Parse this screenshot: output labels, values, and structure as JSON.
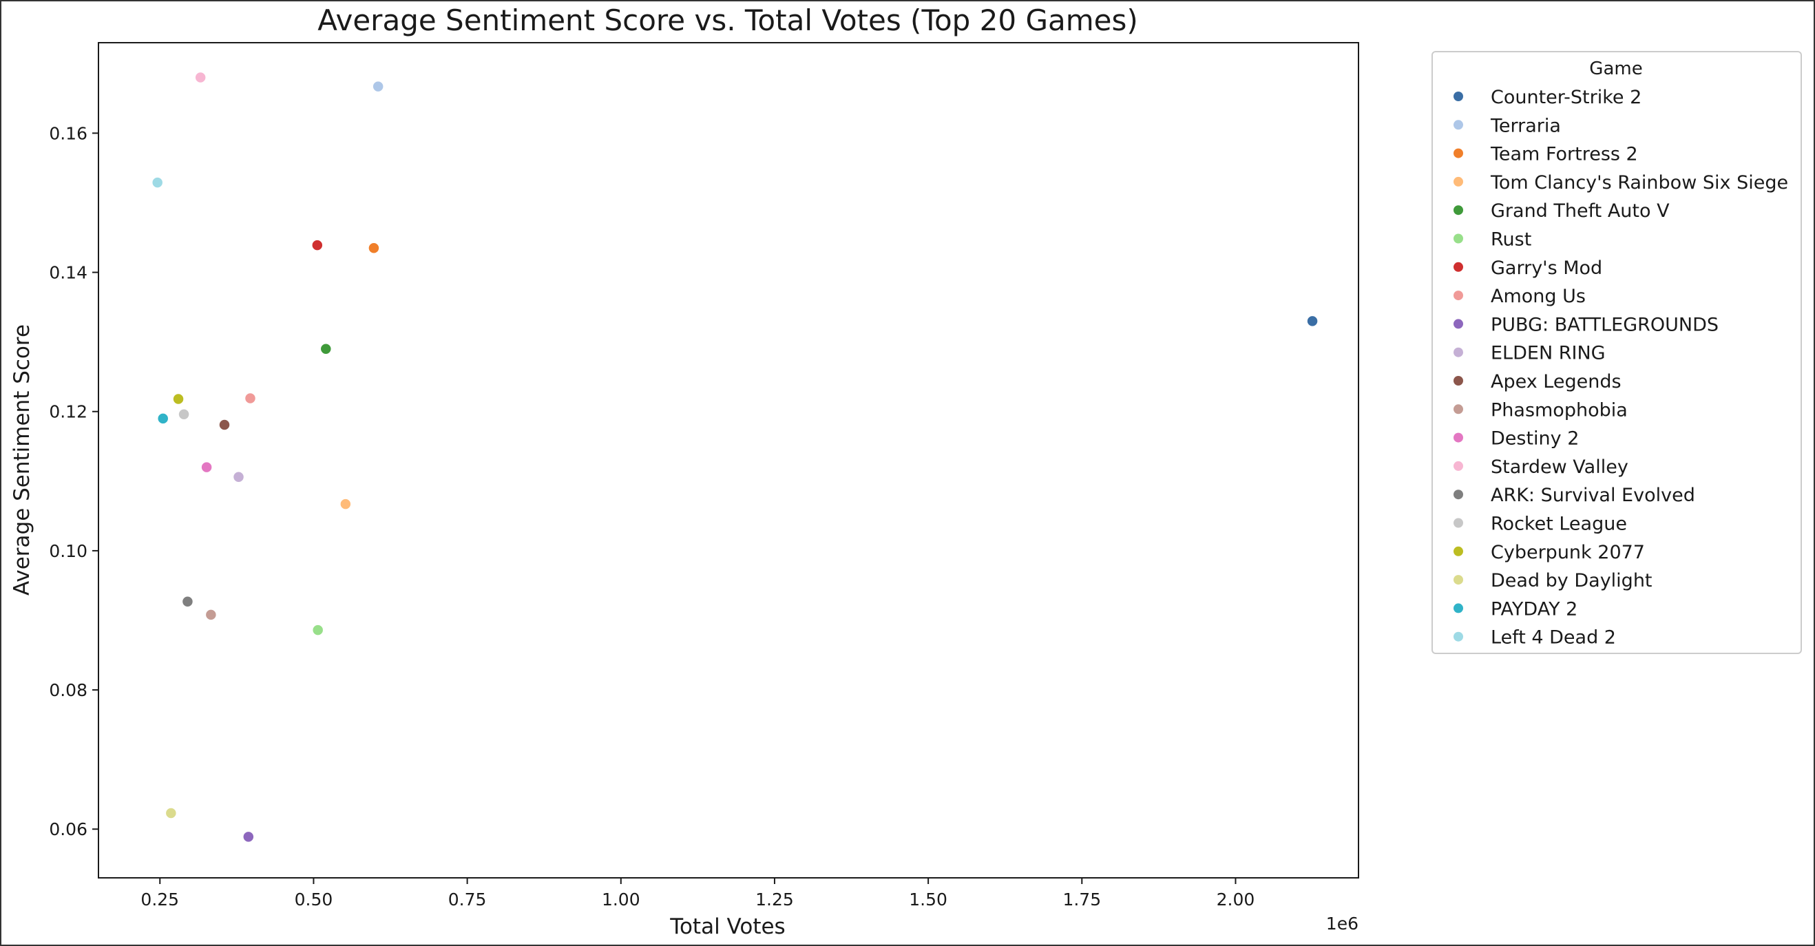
{
  "chart_data": {
    "type": "scatter",
    "title": "Average Sentiment Score vs. Total Votes (Top 20 Games)",
    "xlabel": "Total Votes",
    "ylabel": "Average Sentiment Score",
    "x_offset_label": "1e6",
    "x_scale_factor": 1000000,
    "xlim": [
      150000,
      2200000
    ],
    "ylim": [
      0.053,
      0.173
    ],
    "x_ticks": [
      0.25,
      0.5,
      0.75,
      1.0,
      1.25,
      1.5,
      1.75,
      2.0
    ],
    "x_tick_labels": [
      "0.25",
      "0.50",
      "0.75",
      "1.00",
      "1.25",
      "1.50",
      "1.75",
      "2.00"
    ],
    "y_ticks": [
      0.06,
      0.08,
      0.1,
      0.12,
      0.14,
      0.16
    ],
    "y_tick_labels": [
      "0.06",
      "0.08",
      "0.10",
      "0.12",
      "0.14",
      "0.16"
    ],
    "grid": false,
    "legend_title": "Game",
    "legend_position": "outside-right",
    "series": [
      {
        "name": "Counter-Strike 2",
        "color": "#3a6ea5",
        "x": 2125000,
        "y": 0.133
      },
      {
        "name": "Terraria",
        "color": "#aec7e8",
        "x": 605000,
        "y": 0.1667
      },
      {
        "name": "Team Fortress 2",
        "color": "#f07f2a",
        "x": 598000,
        "y": 0.1435
      },
      {
        "name": "Tom Clancy's Rainbow Six Siege",
        "color": "#ffbb78",
        "x": 552000,
        "y": 0.1067
      },
      {
        "name": "Grand Theft Auto V",
        "color": "#3f9a3a",
        "x": 520000,
        "y": 0.129
      },
      {
        "name": "Rust",
        "color": "#98df8a",
        "x": 507000,
        "y": 0.0886
      },
      {
        "name": "Garry's Mod",
        "color": "#cf2f2f",
        "x": 506000,
        "y": 0.1439
      },
      {
        "name": "Among Us",
        "color": "#f09a98",
        "x": 397000,
        "y": 0.1219
      },
      {
        "name": "PUBG: BATTLEGROUNDS",
        "color": "#8d67bd",
        "x": 394000,
        "y": 0.0589
      },
      {
        "name": "ELDEN RING",
        "color": "#c5b0d5",
        "x": 378000,
        "y": 0.1106
      },
      {
        "name": "Apex Legends",
        "color": "#8c564b",
        "x": 355000,
        "y": 0.1181
      },
      {
        "name": "Phasmophobia",
        "color": "#c49c94",
        "x": 333000,
        "y": 0.0908
      },
      {
        "name": "Destiny 2",
        "color": "#e377c2",
        "x": 326000,
        "y": 0.112
      },
      {
        "name": "Stardew Valley",
        "color": "#f7b6d2",
        "x": 316000,
        "y": 0.168
      },
      {
        "name": "ARK: Survival Evolved",
        "color": "#7f7f7f",
        "x": 295000,
        "y": 0.0927
      },
      {
        "name": "Rocket League",
        "color": "#c7c7c7",
        "x": 289000,
        "y": 0.1196
      },
      {
        "name": "Cyberpunk 2077",
        "color": "#bcbd22",
        "x": 280000,
        "y": 0.1218
      },
      {
        "name": "Dead by Daylight",
        "color": "#dbdb8d",
        "x": 268000,
        "y": 0.0623
      },
      {
        "name": "PAYDAY 2",
        "color": "#30b3c8",
        "x": 255000,
        "y": 0.119
      },
      {
        "name": "Left 4 Dead 2",
        "color": "#9edae5",
        "x": 246000,
        "y": 0.1529
      }
    ]
  }
}
